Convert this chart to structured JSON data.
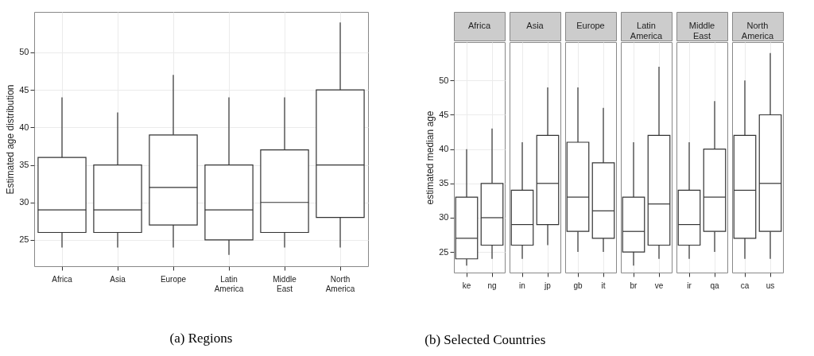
{
  "chart_data": [
    {
      "type": "box",
      "ylabel": "Estimated age distribution",
      "annotations": [
        "(a) Regions"
      ],
      "categories": [
        "Africa",
        "Asia",
        "Europe",
        "Latin America",
        "Middle East",
        "North America"
      ],
      "ylim": [
        21.5,
        55.4
      ],
      "yticks": [
        25,
        30,
        35,
        40,
        45,
        50
      ],
      "grid": true,
      "boxes": [
        {
          "low": 24,
          "q1": 26,
          "median": 29,
          "q3": 36,
          "high": 44
        },
        {
          "low": 24,
          "q1": 26,
          "median": 29,
          "q3": 35,
          "high": 42
        },
        {
          "low": 24,
          "q1": 27,
          "median": 32,
          "q3": 39,
          "high": 47
        },
        {
          "low": 23,
          "q1": 25,
          "median": 29,
          "q3": 35,
          "high": 44
        },
        {
          "low": 24,
          "q1": 26,
          "median": 30,
          "q3": 37,
          "high": 44
        },
        {
          "low": 24,
          "q1": 28,
          "median": 35,
          "q3": 45,
          "high": 54
        }
      ]
    },
    {
      "type": "box",
      "title": "Africa",
      "ylabel": "estimated median age",
      "annotations": [
        "(b) Selected Countries"
      ],
      "categories": [
        "ke",
        "ng"
      ],
      "ylim": [
        22,
        55.6
      ],
      "yticks": [
        25,
        30,
        35,
        40,
        45,
        50
      ],
      "grid": true,
      "boxes": [
        {
          "low": 23,
          "q1": 24,
          "median": 27,
          "q3": 33,
          "high": 40
        },
        {
          "low": 24,
          "q1": 26,
          "median": 30,
          "q3": 35,
          "high": 43
        }
      ]
    },
    {
      "type": "box",
      "title": "Asia",
      "categories": [
        "in",
        "jp"
      ],
      "ylim": [
        22,
        55.6
      ],
      "tick_labels": "x",
      "grid": true,
      "boxes": [
        {
          "low": 24,
          "q1": 26,
          "median": 29,
          "q3": 34,
          "high": 41
        },
        {
          "low": 26,
          "q1": 29,
          "median": 35,
          "q3": 42,
          "high": 49
        }
      ]
    },
    {
      "type": "box",
      "title": "Europe",
      "categories": [
        "gb",
        "it"
      ],
      "ylim": [
        22,
        55.6
      ],
      "tick_labels": "x",
      "grid": true,
      "boxes": [
        {
          "low": 25,
          "q1": 28,
          "median": 33,
          "q3": 41,
          "high": 49
        },
        {
          "low": 25,
          "q1": 27,
          "median": 31,
          "q3": 38,
          "high": 46
        }
      ]
    },
    {
      "type": "box",
      "title": "Latin America",
      "categories": [
        "br",
        "ve"
      ],
      "ylim": [
        22,
        55.6
      ],
      "tick_labels": "x",
      "grid": true,
      "boxes": [
        {
          "low": 23,
          "q1": 25,
          "median": 28,
          "q3": 33,
          "high": 41
        },
        {
          "low": 24,
          "q1": 26,
          "median": 32,
          "q3": 42,
          "high": 52
        }
      ]
    },
    {
      "type": "box",
      "title": "Middle East",
      "categories": [
        "ir",
        "qa"
      ],
      "ylim": [
        22,
        55.6
      ],
      "tick_labels": "x",
      "grid": true,
      "boxes": [
        {
          "low": 24,
          "q1": 26,
          "median": 29,
          "q3": 34,
          "high": 41
        },
        {
          "low": 25,
          "q1": 28,
          "median": 33,
          "q3": 40,
          "high": 47
        }
      ]
    },
    {
      "type": "box",
      "title": "North America",
      "categories": [
        "ca",
        "us"
      ],
      "ylim": [
        22,
        55.6
      ],
      "tick_labels": "x",
      "grid": true,
      "boxes": [
        {
          "low": 24,
          "q1": 27,
          "median": 34,
          "q3": 42,
          "high": 50
        },
        {
          "low": 24,
          "q1": 28,
          "median": 35,
          "q3": 45,
          "high": 54
        }
      ]
    }
  ]
}
